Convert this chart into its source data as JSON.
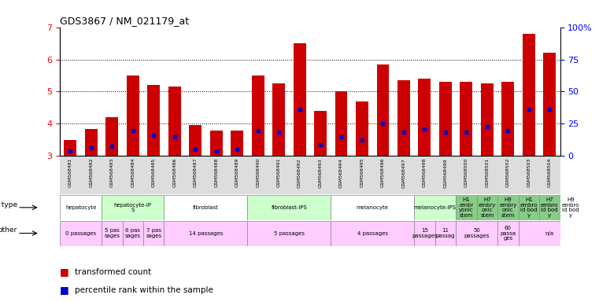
{
  "title": "GDS3867 / NM_021179_at",
  "samples": [
    "GSM568481",
    "GSM568482",
    "GSM568483",
    "GSM568484",
    "GSM568485",
    "GSM568486",
    "GSM568487",
    "GSM568488",
    "GSM568489",
    "GSM568490",
    "GSM568491",
    "GSM568492",
    "GSM568493",
    "GSM568494",
    "GSM568495",
    "GSM568496",
    "GSM568497",
    "GSM568498",
    "GSM568499",
    "GSM568500",
    "GSM568501",
    "GSM568502",
    "GSM568503",
    "GSM568504"
  ],
  "bar_values": [
    3.5,
    3.85,
    4.2,
    5.5,
    5.2,
    5.15,
    3.95,
    3.8,
    3.8,
    5.5,
    5.25,
    6.5,
    4.4,
    5.0,
    4.7,
    5.85,
    5.35,
    5.4,
    5.3,
    5.3,
    5.25,
    5.3,
    6.8,
    6.2
  ],
  "percentile_values": [
    3.15,
    3.25,
    3.3,
    3.8,
    3.65,
    3.6,
    3.2,
    3.15,
    3.2,
    3.8,
    3.75,
    4.45,
    3.35,
    3.6,
    3.5,
    4.0,
    3.75,
    3.85,
    3.75,
    3.75,
    3.9,
    3.8,
    4.45,
    4.45
  ],
  "y_min": 3.0,
  "y_max": 7.0,
  "y_ticks": [
    3,
    4,
    5,
    6,
    7
  ],
  "bar_color": "#cc0000",
  "percentile_color": "#0000cc",
  "bar_width": 0.6,
  "cell_type_groups": [
    {
      "label": "hepatocyte",
      "start": 0,
      "end": 2,
      "bg": "#ffffff"
    },
    {
      "label": "hepatocyte-iP\nS",
      "start": 2,
      "end": 5,
      "bg": "#ccffcc"
    },
    {
      "label": "fibroblast",
      "start": 5,
      "end": 9,
      "bg": "#ffffff"
    },
    {
      "label": "fibroblast-IPS",
      "start": 9,
      "end": 13,
      "bg": "#ccffcc"
    },
    {
      "label": "melanocyte",
      "start": 13,
      "end": 17,
      "bg": "#ffffff"
    },
    {
      "label": "melanocyte-IPS",
      "start": 17,
      "end": 19,
      "bg": "#ccffcc"
    },
    {
      "label": "H1\nembr\nyonic\nstem",
      "start": 19,
      "end": 20,
      "bg": "#88cc88"
    },
    {
      "label": "H7\nembry\nonic\nstem",
      "start": 20,
      "end": 21,
      "bg": "#88cc88"
    },
    {
      "label": "H9\nembry\nonic\nstem",
      "start": 21,
      "end": 22,
      "bg": "#88cc88"
    },
    {
      "label": "H1\nembro\nid bod\ny",
      "start": 22,
      "end": 23,
      "bg": "#88cc88"
    },
    {
      "label": "H7\nembro\nid bod\ny",
      "start": 23,
      "end": 24,
      "bg": "#88cc88"
    },
    {
      "label": "H9\nembro\nid bod\ny",
      "start": 24,
      "end": 25,
      "bg": "#88cc88"
    }
  ],
  "other_groups": [
    {
      "label": "0 passages",
      "start": 0,
      "end": 2,
      "bg": "#ffccff"
    },
    {
      "label": "5 pas\nsages",
      "start": 2,
      "end": 3,
      "bg": "#ffccff"
    },
    {
      "label": "6 pas\nsages",
      "start": 3,
      "end": 4,
      "bg": "#ffccff"
    },
    {
      "label": "7 pas\nsages",
      "start": 4,
      "end": 5,
      "bg": "#ffccff"
    },
    {
      "label": "14 passages",
      "start": 5,
      "end": 9,
      "bg": "#ffccff"
    },
    {
      "label": "5 passages",
      "start": 9,
      "end": 13,
      "bg": "#ffccff"
    },
    {
      "label": "4 passages",
      "start": 13,
      "end": 17,
      "bg": "#ffccff"
    },
    {
      "label": "15\npassages",
      "start": 17,
      "end": 18,
      "bg": "#ffccff"
    },
    {
      "label": "11\npassag",
      "start": 18,
      "end": 19,
      "bg": "#ffccff"
    },
    {
      "label": "50\npassages",
      "start": 19,
      "end": 21,
      "bg": "#ffccff"
    },
    {
      "label": "60\npassa\nges",
      "start": 21,
      "end": 22,
      "bg": "#ffccff"
    },
    {
      "label": "n/a",
      "start": 22,
      "end": 25,
      "bg": "#ffccff"
    }
  ],
  "right_y_ticks": [
    0,
    25,
    50,
    75,
    100
  ],
  "right_y_labels": [
    "0",
    "25",
    "50",
    "75",
    "100%"
  ],
  "sample_bg": "#dddddd",
  "fig_width": 7.61,
  "fig_height": 3.84,
  "fig_dpi": 100
}
